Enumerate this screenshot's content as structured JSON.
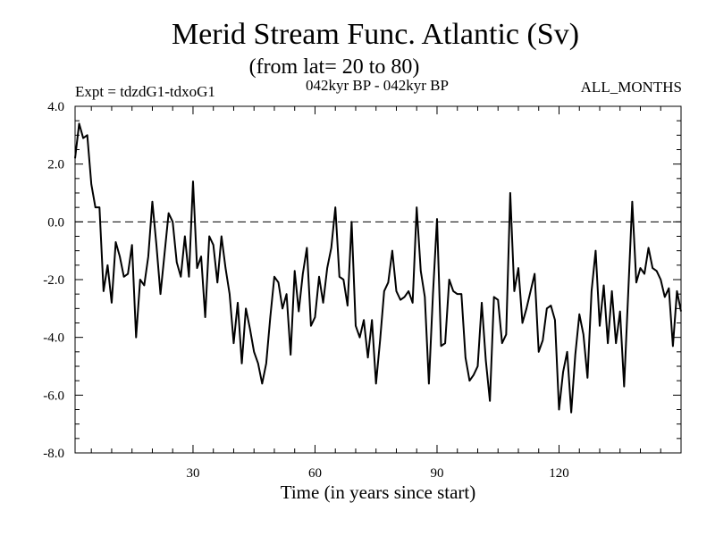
{
  "chart_data": {
    "type": "line",
    "title": "Merid Stream Func. Atlantic (Sv)",
    "subtitle": "(from lat= 20 to 80)",
    "annotations": {
      "left": "Expt = tdzdG1-tdxoG1",
      "center": "042kyr BP - 042kyr BP",
      "right": "ALL_MONTHS"
    },
    "xlabel": "Time (in years since start)",
    "ylabel": "",
    "xlim": [
      1,
      150
    ],
    "ylim": [
      -8,
      4
    ],
    "x_ticks": [
      30,
      60,
      90,
      120
    ],
    "x_tick_labels": [
      "30",
      "60",
      "90",
      "120"
    ],
    "y_ticks": [
      -8,
      -6,
      -4,
      -2,
      0,
      2,
      4
    ],
    "y_tick_labels": [
      "-8.0",
      "-6.0",
      "-4.0",
      "-2.0",
      "0.0",
      "2.0",
      "4.0"
    ],
    "reference_line": {
      "y": 0,
      "style": "dashed"
    },
    "grid": false,
    "series": [
      {
        "name": "Merid Stream Func. Atlantic",
        "x_start": 1,
        "x_step": 1,
        "values": [
          2.2,
          3.4,
          2.9,
          3.0,
          1.3,
          0.5,
          0.5,
          -2.4,
          -1.5,
          -2.8,
          -0.7,
          -1.2,
          -1.9,
          -1.8,
          -0.8,
          -4.0,
          -2.0,
          -2.2,
          -1.2,
          0.7,
          -0.8,
          -2.5,
          -1.1,
          0.3,
          0.0,
          -1.4,
          -1.9,
          -0.5,
          -1.9,
          1.4,
          -1.6,
          -1.2,
          -3.3,
          -0.5,
          -0.8,
          -2.1,
          -0.5,
          -1.6,
          -2.5,
          -4.2,
          -2.8,
          -4.9,
          -3.0,
          -3.7,
          -4.5,
          -4.9,
          -5.6,
          -4.9,
          -3.3,
          -1.9,
          -2.1,
          -3.0,
          -2.5,
          -4.6,
          -1.7,
          -3.1,
          -1.8,
          -0.9,
          -3.6,
          -3.3,
          -1.9,
          -2.8,
          -1.6,
          -0.9,
          0.5,
          -1.9,
          -2.0,
          -2.9,
          0.0,
          -3.6,
          -4.0,
          -3.4,
          -4.7,
          -3.4,
          -5.6,
          -4.1,
          -2.4,
          -2.1,
          -1.0,
          -2.4,
          -2.7,
          -2.6,
          -2.4,
          -2.8,
          0.5,
          -1.7,
          -2.6,
          -5.6,
          -2.5,
          0.1,
          -4.3,
          -4.2,
          -2.0,
          -2.4,
          -2.5,
          -2.5,
          -4.7,
          -5.5,
          -5.3,
          -5.0,
          -2.8,
          -4.8,
          -6.2,
          -2.6,
          -2.7,
          -4.2,
          -3.9,
          1.0,
          -2.4,
          -1.6,
          -3.5,
          -3.0,
          -2.4,
          -1.8,
          -4.5,
          -4.1,
          -3.0,
          -2.9,
          -3.4,
          -6.5,
          -5.2,
          -4.5,
          -6.6,
          -4.6,
          -3.2,
          -3.9,
          -5.4,
          -2.4,
          -1.0,
          -3.6,
          -2.2,
          -4.2,
          -2.4,
          -4.2,
          -3.1,
          -5.7,
          -2.5,
          0.7,
          -2.1,
          -1.6,
          -1.8,
          -0.9,
          -1.6,
          -1.7,
          -2.0,
          -2.6,
          -2.3,
          -4.3,
          -2.4,
          -3.1
        ]
      }
    ]
  }
}
